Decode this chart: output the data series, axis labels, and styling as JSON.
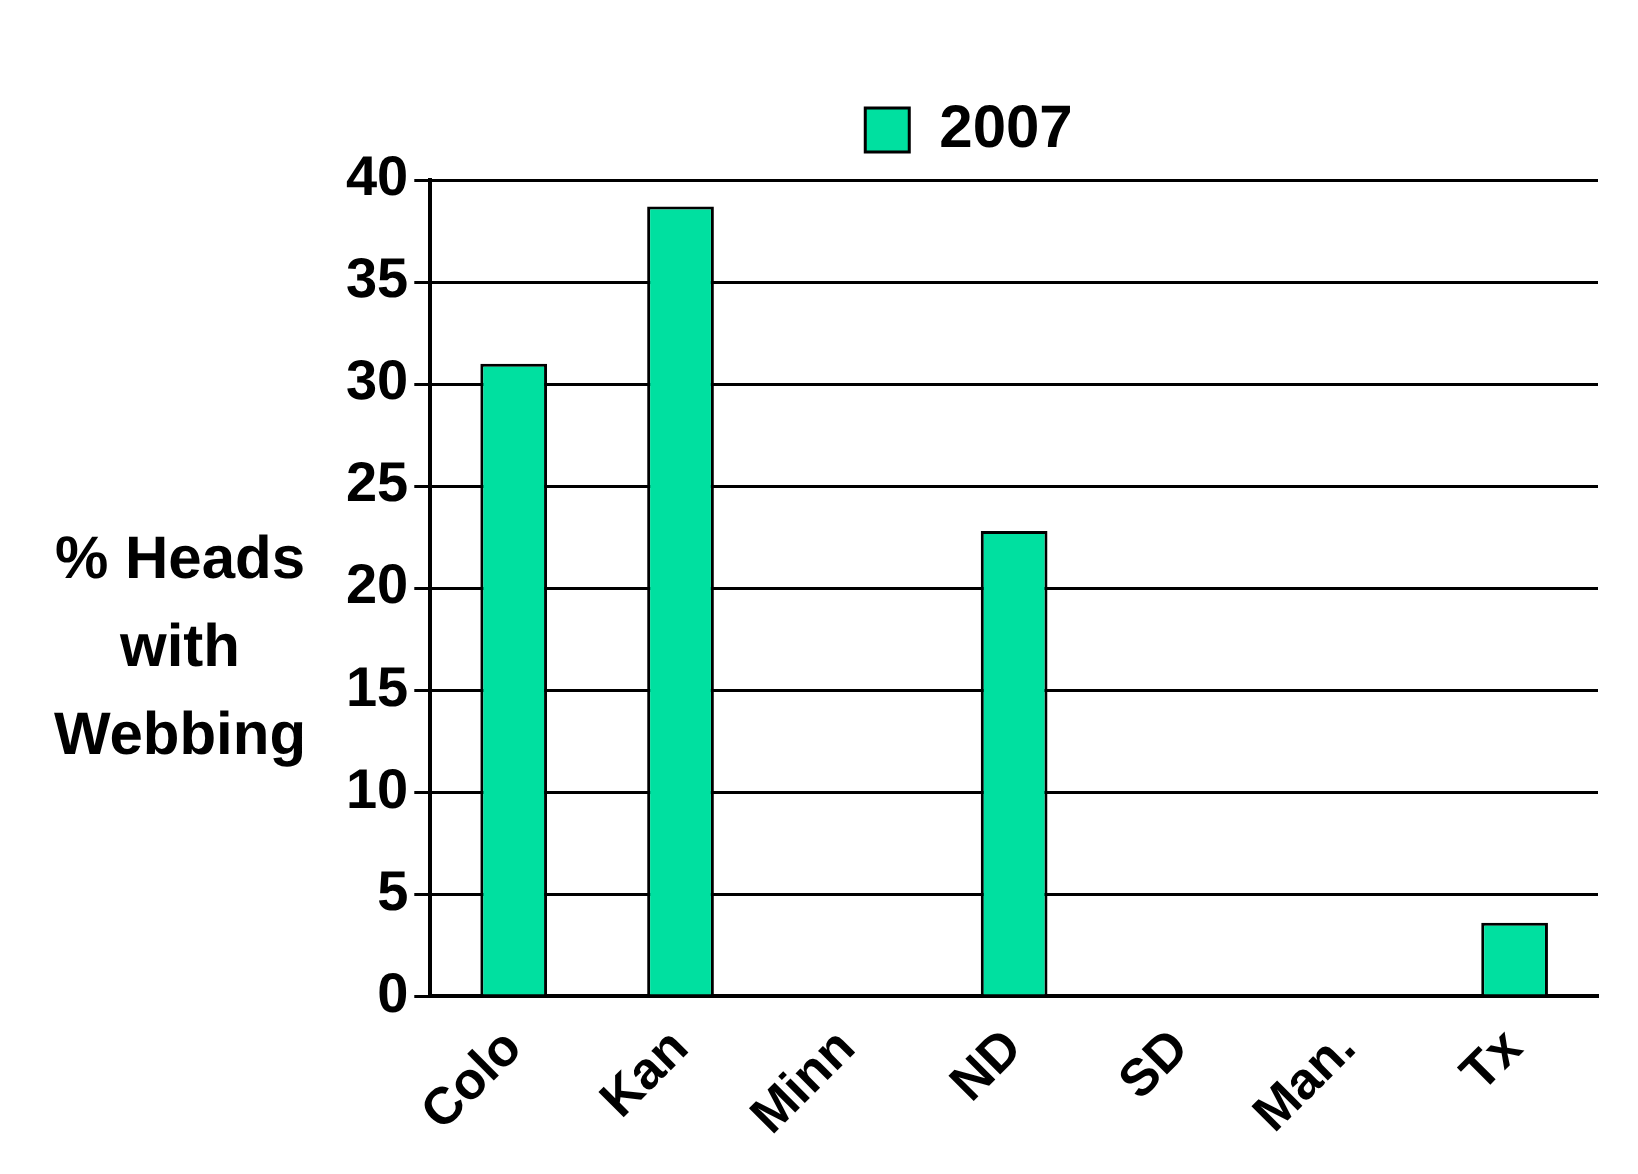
{
  "chart_data": {
    "type": "bar",
    "ylabel": "% Heads\nwith\nWebbing",
    "categories": [
      "Colo",
      "Kan",
      "Minn",
      "ND",
      "SD",
      "Man.",
      "Tx"
    ],
    "series": [
      {
        "name": "2007",
        "color": "#00e0a0",
        "values": [
          31,
          38.7,
          0,
          22.8,
          0,
          0,
          3.6
        ]
      }
    ],
    "ylim": [
      0,
      40
    ],
    "yticks": [
      0,
      5,
      10,
      15,
      20,
      25,
      30,
      35,
      40
    ],
    "grid": "y",
    "legend": "top"
  }
}
